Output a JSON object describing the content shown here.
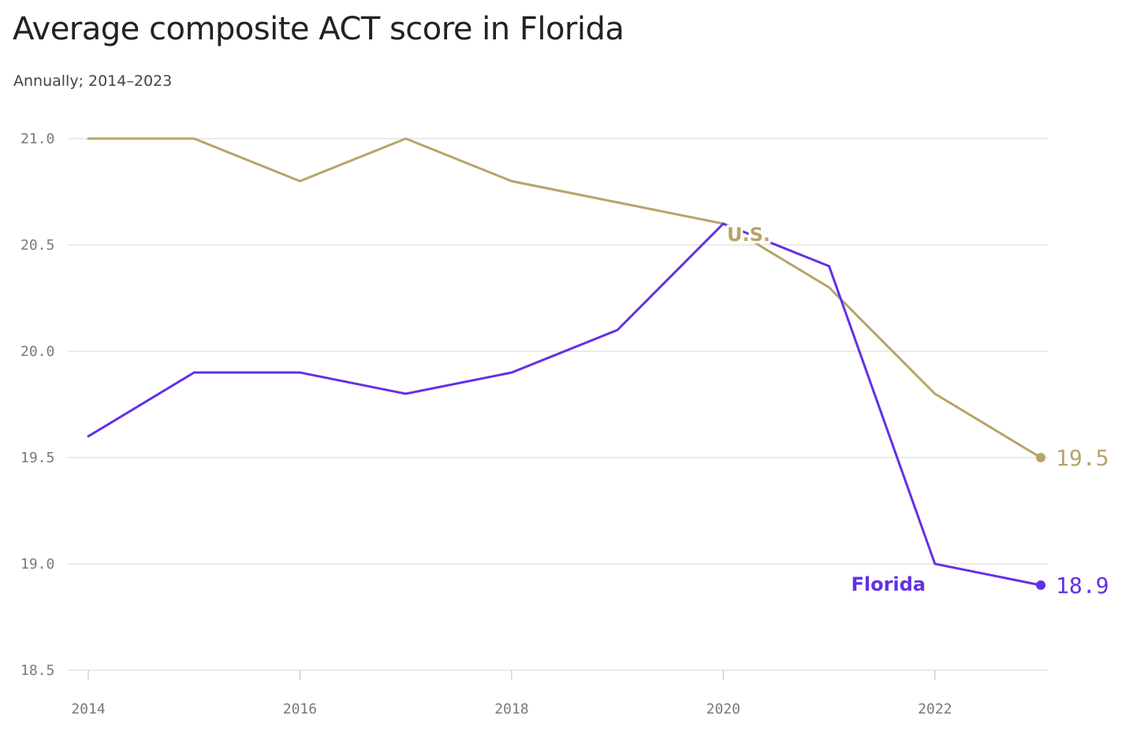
{
  "chart_data": {
    "type": "line",
    "title": "Average composite ACT score in Florida",
    "subtitle": "Annually; 2014–2023",
    "x": [
      2014,
      2015,
      2016,
      2017,
      2018,
      2019,
      2020,
      2021,
      2022,
      2023
    ],
    "xticks": [
      "2014",
      "2016",
      "2018",
      "2020",
      "2022"
    ],
    "yticks": [
      "18.5",
      "19.0",
      "19.5",
      "20.0",
      "20.5",
      "21.0"
    ],
    "xlim": [
      2014,
      2023
    ],
    "ylim": [
      18.5,
      21.0
    ],
    "grid": "horizontal",
    "series": [
      {
        "name": "U.S.",
        "color": "#b8a468",
        "values": [
          21.0,
          21.0,
          20.8,
          21.0,
          20.8,
          20.7,
          20.6,
          20.3,
          19.8,
          19.5
        ],
        "end_label": "19.5"
      },
      {
        "name": "Florida",
        "color": "#6330e6",
        "values": [
          19.6,
          19.9,
          19.9,
          19.8,
          19.9,
          20.1,
          20.6,
          20.4,
          19.0,
          18.9
        ],
        "end_label": "18.9"
      }
    ]
  }
}
